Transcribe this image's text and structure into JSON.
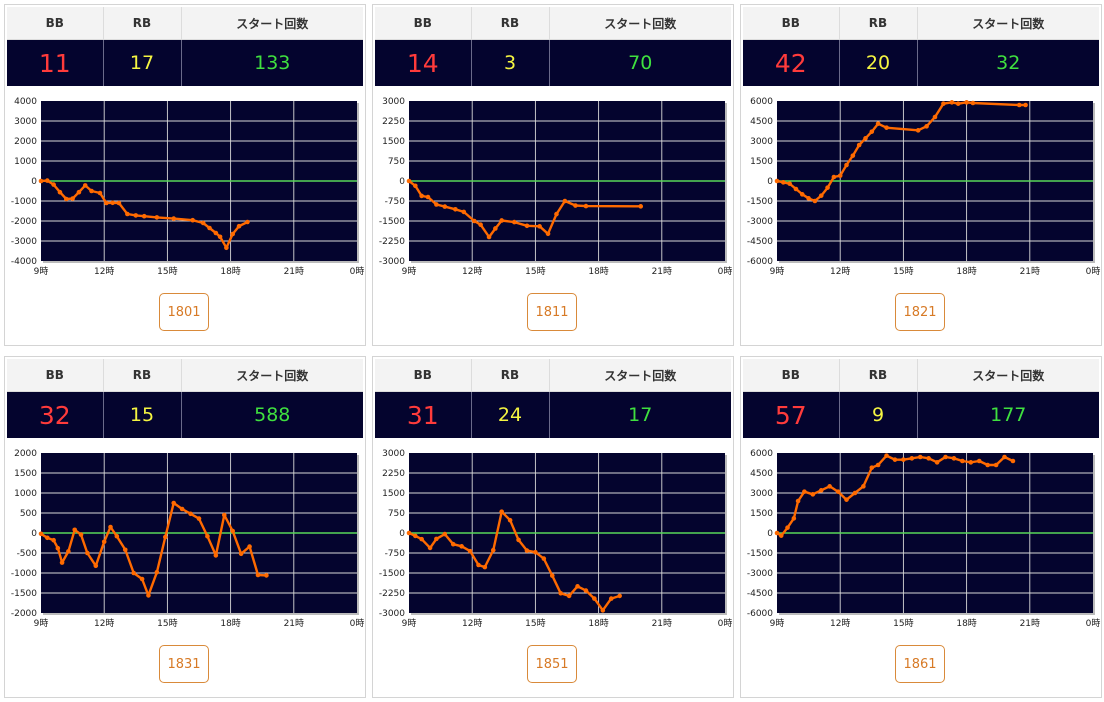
{
  "headers": {
    "bb": "BB",
    "rb": "RB",
    "start": "スタート回数"
  },
  "xTicks": [
    "9時",
    "12時",
    "15時",
    "18時",
    "21時",
    "0時"
  ],
  "colors": {
    "plot_bg": "#04042e",
    "line": "#ff6a00",
    "zero": "#58d858",
    "bb": "#ff3b3b",
    "rb": "#f5f542",
    "start": "#3fe03f",
    "button": "#d77a26"
  },
  "panels": [
    {
      "bb": "11",
      "rb": "17",
      "start": "133",
      "unit": "1801",
      "chart_data": {
        "type": "line",
        "ylim": [
          -4000,
          4000
        ],
        "yTicks": [
          "4000",
          "3000",
          "2000",
          "1000",
          "0",
          "-1000",
          "-2000",
          "-3000",
          "-4000"
        ],
        "points": [
          [
            9.0,
            0
          ],
          [
            9.3,
            20
          ],
          [
            9.6,
            -180
          ],
          [
            9.9,
            -560
          ],
          [
            10.2,
            -900
          ],
          [
            10.5,
            -880
          ],
          [
            10.8,
            -560
          ],
          [
            11.1,
            -220
          ],
          [
            11.4,
            -500
          ],
          [
            11.8,
            -600
          ],
          [
            12.1,
            -1100
          ],
          [
            12.4,
            -1090
          ],
          [
            12.7,
            -1100
          ],
          [
            13.1,
            -1650
          ],
          [
            13.5,
            -1720
          ],
          [
            13.9,
            -1760
          ],
          [
            14.5,
            -1820
          ],
          [
            15.3,
            -1880
          ],
          [
            16.2,
            -1960
          ],
          [
            16.7,
            -2100
          ],
          [
            17.0,
            -2350
          ],
          [
            17.3,
            -2600
          ],
          [
            17.5,
            -2790
          ],
          [
            17.8,
            -3340
          ],
          [
            18.1,
            -2650
          ],
          [
            18.4,
            -2260
          ],
          [
            18.8,
            -2050
          ]
        ]
      }
    },
    {
      "bb": "14",
      "rb": "3",
      "start": "70",
      "unit": "1811",
      "chart_data": {
        "type": "line",
        "ylim": [
          -3000,
          3000
        ],
        "yTicks": [
          "3000",
          "2250",
          "1500",
          "750",
          "0",
          "-750",
          "-1500",
          "-2250",
          "-3000"
        ],
        "points": [
          [
            9.0,
            0
          ],
          [
            9.3,
            -180
          ],
          [
            9.6,
            -560
          ],
          [
            9.9,
            -600
          ],
          [
            10.3,
            -880
          ],
          [
            10.7,
            -960
          ],
          [
            11.2,
            -1060
          ],
          [
            11.6,
            -1160
          ],
          [
            12.1,
            -1500
          ],
          [
            12.4,
            -1640
          ],
          [
            12.8,
            -2100
          ],
          [
            13.1,
            -1780
          ],
          [
            13.4,
            -1480
          ],
          [
            14.0,
            -1540
          ],
          [
            14.6,
            -1680
          ],
          [
            15.2,
            -1700
          ],
          [
            15.6,
            -1980
          ],
          [
            16.0,
            -1240
          ],
          [
            16.4,
            -750
          ],
          [
            16.9,
            -920
          ],
          [
            17.4,
            -940
          ],
          [
            20.0,
            -950
          ]
        ]
      }
    },
    {
      "bb": "42",
      "rb": "20",
      "start": "32",
      "unit": "1821",
      "chart_data": {
        "type": "line",
        "ylim": [
          -6000,
          6000
        ],
        "yTicks": [
          "6000",
          "4500",
          "3000",
          "1500",
          "0",
          "-1500",
          "-3000",
          "-4500",
          "-6000"
        ],
        "points": [
          [
            9.0,
            0
          ],
          [
            9.3,
            -100
          ],
          [
            9.6,
            -200
          ],
          [
            9.9,
            -600
          ],
          [
            10.2,
            -1000
          ],
          [
            10.5,
            -1300
          ],
          [
            10.8,
            -1500
          ],
          [
            11.1,
            -1100
          ],
          [
            11.4,
            -500
          ],
          [
            11.7,
            300
          ],
          [
            12.0,
            400
          ],
          [
            12.3,
            1200
          ],
          [
            12.6,
            1900
          ],
          [
            12.9,
            2700
          ],
          [
            13.2,
            3200
          ],
          [
            13.5,
            3700
          ],
          [
            13.8,
            4300
          ],
          [
            14.2,
            4000
          ],
          [
            15.7,
            3800
          ],
          [
            16.1,
            4100
          ],
          [
            16.5,
            4800
          ],
          [
            16.9,
            5800
          ],
          [
            17.3,
            5900
          ],
          [
            17.6,
            5800
          ],
          [
            18.0,
            5900
          ],
          [
            18.3,
            5850
          ],
          [
            20.5,
            5700
          ],
          [
            20.8,
            5700
          ]
        ]
      }
    },
    {
      "bb": "32",
      "rb": "15",
      "start": "588",
      "unit": "1831",
      "chart_data": {
        "type": "line",
        "ylim": [
          -2000,
          2000
        ],
        "yTicks": [
          "2000",
          "1500",
          "1000",
          "500",
          "0",
          "-500",
          "-1000",
          "-1500",
          "-2000"
        ],
        "points": [
          [
            9.0,
            -20
          ],
          [
            9.3,
            -120
          ],
          [
            9.6,
            -180
          ],
          [
            9.8,
            -380
          ],
          [
            10.0,
            -740
          ],
          [
            10.3,
            -460
          ],
          [
            10.6,
            80
          ],
          [
            10.9,
            -40
          ],
          [
            11.2,
            -500
          ],
          [
            11.6,
            -820
          ],
          [
            12.0,
            -220
          ],
          [
            12.3,
            150
          ],
          [
            12.6,
            -80
          ],
          [
            13.0,
            -420
          ],
          [
            13.4,
            -1000
          ],
          [
            13.8,
            -1150
          ],
          [
            14.1,
            -1560
          ],
          [
            14.5,
            -980
          ],
          [
            14.9,
            -100
          ],
          [
            15.3,
            750
          ],
          [
            15.7,
            600
          ],
          [
            16.1,
            480
          ],
          [
            16.5,
            360
          ],
          [
            16.9,
            -80
          ],
          [
            17.3,
            -560
          ],
          [
            17.7,
            450
          ],
          [
            18.1,
            50
          ],
          [
            18.5,
            -520
          ],
          [
            18.9,
            -340
          ],
          [
            19.3,
            -1050
          ],
          [
            19.7,
            -1060
          ]
        ]
      }
    },
    {
      "bb": "31",
      "rb": "24",
      "start": "17",
      "unit": "1851",
      "chart_data": {
        "type": "line",
        "ylim": [
          -3000,
          3000
        ],
        "yTicks": [
          "3000",
          "2250",
          "1500",
          "750",
          "0",
          "-750",
          "-1500",
          "-2250",
          "-3000"
        ],
        "points": [
          [
            9.0,
            0
          ],
          [
            9.3,
            -110
          ],
          [
            9.6,
            -230
          ],
          [
            10.0,
            -560
          ],
          [
            10.3,
            -220
          ],
          [
            10.7,
            -40
          ],
          [
            11.1,
            -420
          ],
          [
            11.5,
            -500
          ],
          [
            11.9,
            -680
          ],
          [
            12.3,
            -1200
          ],
          [
            12.6,
            -1280
          ],
          [
            13.0,
            -640
          ],
          [
            13.4,
            800
          ],
          [
            13.8,
            480
          ],
          [
            14.2,
            -260
          ],
          [
            14.6,
            -660
          ],
          [
            15.0,
            -720
          ],
          [
            15.4,
            -960
          ],
          [
            15.8,
            -1600
          ],
          [
            16.2,
            -2260
          ],
          [
            16.6,
            -2360
          ],
          [
            17.0,
            -2000
          ],
          [
            17.4,
            -2160
          ],
          [
            17.8,
            -2460
          ],
          [
            18.2,
            -2900
          ],
          [
            18.6,
            -2460
          ],
          [
            19.0,
            -2360
          ]
        ]
      }
    },
    {
      "bb": "57",
      "rb": "9",
      "start": "177",
      "unit": "1861",
      "chart_data": {
        "type": "line",
        "ylim": [
          -6000,
          6000
        ],
        "yTicks": [
          "6000",
          "4500",
          "3000",
          "1500",
          "0",
          "-1500",
          "-3000",
          "-4500",
          "-6000"
        ],
        "points": [
          [
            9.0,
            0
          ],
          [
            9.2,
            -200
          ],
          [
            9.5,
            400
          ],
          [
            9.8,
            1100
          ],
          [
            10.0,
            2400
          ],
          [
            10.3,
            3100
          ],
          [
            10.7,
            2900
          ],
          [
            11.1,
            3200
          ],
          [
            11.5,
            3500
          ],
          [
            11.9,
            3100
          ],
          [
            12.3,
            2500
          ],
          [
            12.7,
            3000
          ],
          [
            13.1,
            3500
          ],
          [
            13.5,
            4900
          ],
          [
            13.8,
            5100
          ],
          [
            14.2,
            5800
          ],
          [
            14.6,
            5500
          ],
          [
            15.0,
            5500
          ],
          [
            15.4,
            5600
          ],
          [
            15.8,
            5700
          ],
          [
            16.2,
            5600
          ],
          [
            16.6,
            5300
          ],
          [
            17.0,
            5700
          ],
          [
            17.4,
            5600
          ],
          [
            17.8,
            5400
          ],
          [
            18.2,
            5300
          ],
          [
            18.6,
            5400
          ],
          [
            19.0,
            5100
          ],
          [
            19.4,
            5100
          ],
          [
            19.8,
            5700
          ],
          [
            20.2,
            5400
          ]
        ]
      }
    }
  ]
}
